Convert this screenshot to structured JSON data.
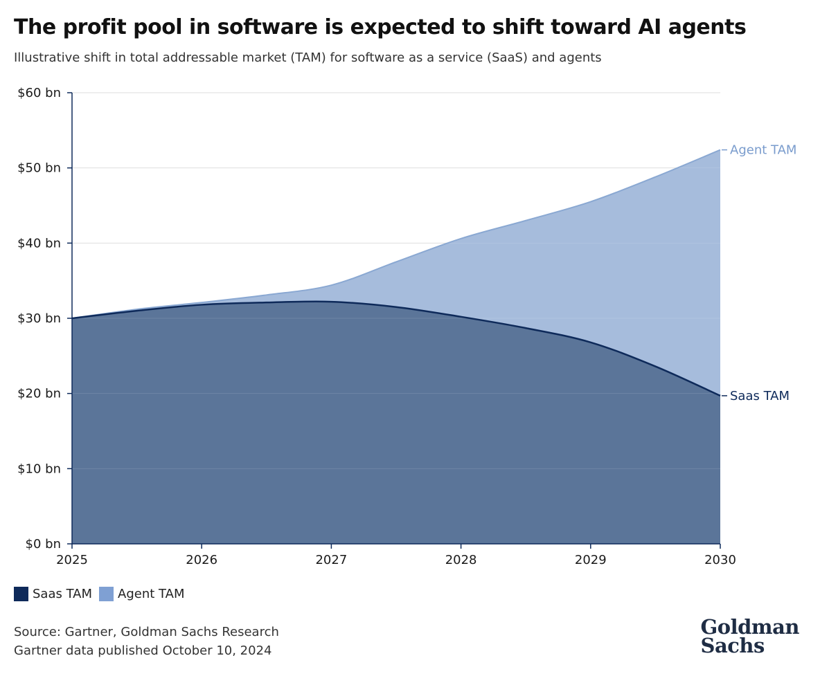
{
  "header": {
    "title": "The profit pool in software is expected to shift toward AI agents",
    "subtitle": "Illustrative shift in total addressable market (TAM) for software as a service (SaaS) and agents"
  },
  "chart_data": {
    "type": "area",
    "title": "The profit pool in software is expected to shift toward AI agents",
    "subtitle": "Illustrative shift in total addressable market (TAM) for software as a service (SaaS) and agents",
    "x": [
      2025,
      2025.5,
      2026,
      2026.5,
      2027,
      2027.5,
      2028,
      2028.5,
      2029,
      2029.5,
      2030
    ],
    "x_ticks": [
      "2025",
      "2026",
      "2027",
      "2028",
      "2029",
      "2030"
    ],
    "y_ticks": [
      "$0 bn",
      "$10 bn",
      "$20 bn",
      "$30 bn",
      "$40 bn",
      "$50 bn",
      "$60 bn"
    ],
    "ylim": [
      0,
      60
    ],
    "xlim": [
      2025,
      2030
    ],
    "grid": true,
    "series": [
      {
        "name": "Saas TAM",
        "values": [
          30,
          31,
          31.8,
          32.1,
          32.2,
          31.5,
          30.2,
          28.7,
          26.8,
          23.6,
          19.7
        ],
        "color": "#5b7599",
        "line_color": "#0e2a5a"
      },
      {
        "name": "Agent TAM",
        "values": [
          30,
          31.2,
          32.1,
          33.1,
          34.4,
          37.5,
          40.6,
          43.0,
          45.5,
          48.8,
          52.4
        ],
        "color": "#a6bcdc",
        "line_color": "#8aa8d2"
      }
    ],
    "end_labels": [
      {
        "series": "Agent TAM",
        "text": "Agent TAM",
        "color": "#7a9ccd"
      },
      {
        "series": "Saas TAM",
        "text": "Saas TAM",
        "color": "#0e2a5a"
      }
    ]
  },
  "legend": {
    "items": [
      {
        "label": "Saas TAM",
        "color": "#0e2a5a"
      },
      {
        "label": "Agent TAM",
        "color": "#7fa0d3"
      }
    ]
  },
  "footer": {
    "source": "Source: Gartner, Goldman Sachs Research",
    "published": "Gartner data published October 10, 2024",
    "logo_line1": "Goldman",
    "logo_line2": "Sachs"
  }
}
